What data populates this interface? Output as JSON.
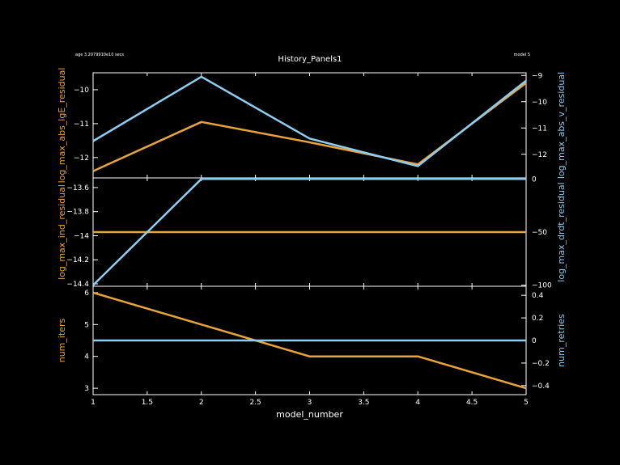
{
  "header": {
    "left": "age 3.2079910e10 secs",
    "center": "History_Panels1",
    "right": "model 5"
  },
  "colors": {
    "orange": "#e8a33a",
    "blue": "#8ecdf2",
    "axis": "#ffffff",
    "background": "#000000"
  },
  "chart_data": [
    {
      "type": "line",
      "panel": "top",
      "x": [
        1,
        2,
        3,
        4,
        5
      ],
      "xlim": [
        1,
        5
      ],
      "series": [
        {
          "name": "log_max_abs_lgE_residual",
          "axis": "left",
          "color": "#e8a33a",
          "values": [
            -12.4,
            -10.95,
            -11.55,
            -12.2,
            -9.8
          ]
        },
        {
          "name": "log_max_abs_v_residual",
          "axis": "right",
          "color": "#8ecdf2",
          "values": [
            -11.5,
            -9.05,
            -11.4,
            -12.45,
            -9.2
          ]
        }
      ],
      "ylabel_left": "log_max_abs_lgE_residual",
      "ylabel_right": "log_max_abs_v_residual",
      "ylim_left": [
        -12.6,
        -9.5
      ],
      "ylim_right": [
        -12.9,
        -8.9
      ],
      "yticks_left": [
        -12,
        -11,
        -10
      ],
      "yticks_right": [
        -12,
        -11,
        -10,
        -9
      ],
      "ytick_labels_left": [
        "−12",
        "−11",
        "−10"
      ],
      "ytick_labels_right": [
        "−12",
        "−11",
        "−10",
        "−9"
      ]
    },
    {
      "type": "line",
      "panel": "middle",
      "x": [
        1,
        2,
        3,
        4,
        5
      ],
      "xlim": [
        1,
        5
      ],
      "series": [
        {
          "name": "log_max_ind_residual",
          "axis": "left",
          "color": "#e8a33a",
          "values": [
            -13.97,
            -13.97,
            -13.97,
            -13.97,
            -13.97
          ]
        },
        {
          "name": "log_max_drdt_residual",
          "axis": "right",
          "color": "#8ecdf2",
          "values": [
            -100,
            0,
            0,
            0,
            0
          ]
        }
      ],
      "ylabel_left": "log_max_ind_residual",
      "ylabel_right": "log_max_drdt_residual",
      "ylim_left": [
        -14.42,
        -13.52
      ],
      "ylim_right": [
        -101,
        1
      ],
      "yticks_left": [
        -14.4,
        -14.2,
        -14,
        -13.8,
        -13.6
      ],
      "yticks_right": [
        -100,
        -50,
        0
      ],
      "ytick_labels_left": [
        "−14.4",
        "−14.2",
        "−14",
        "−13.8",
        "−13.6"
      ],
      "ytick_labels_right": [
        "−100",
        "−50",
        "0"
      ]
    },
    {
      "type": "line",
      "panel": "bottom",
      "x": [
        1,
        2,
        3,
        4,
        5
      ],
      "xlim": [
        1,
        5
      ],
      "xlabel": "model_number",
      "xticks": [
        1,
        1.5,
        2,
        2.5,
        3,
        3.5,
        4,
        4.5,
        5
      ],
      "xtick_labels": [
        "1",
        "1.5",
        "2",
        "2.5",
        "3",
        "3.5",
        "4",
        "4.5",
        "5"
      ],
      "series": [
        {
          "name": "num_iters",
          "axis": "left",
          "color": "#e8a33a",
          "values": [
            6,
            5,
            4,
            4,
            3
          ]
        },
        {
          "name": "num_retries",
          "axis": "right",
          "color": "#8ecdf2",
          "values": [
            0,
            0,
            0,
            0,
            0
          ]
        }
      ],
      "ylabel_left": "num_iters",
      "ylabel_right": "num_retries",
      "ylim_left": [
        2.8,
        6.2
      ],
      "ylim_right": [
        -0.48,
        0.48
      ],
      "yticks_left": [
        3,
        4,
        5,
        6
      ],
      "yticks_right": [
        -0.4,
        -0.2,
        0,
        0.2,
        0.4
      ],
      "ytick_labels_left": [
        "3",
        "4",
        "5",
        "6"
      ],
      "ytick_labels_right": [
        "−0.4",
        "−0.2",
        "0",
        "0.2",
        "0.4"
      ]
    }
  ]
}
